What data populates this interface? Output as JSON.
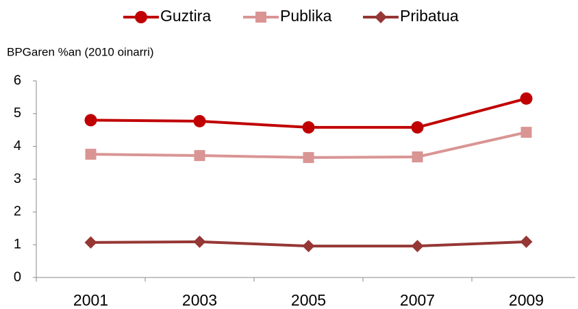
{
  "chart_data": {
    "type": "line",
    "y_axis_label": "BPGaren %an (2010 oinarri)",
    "categories": [
      "2001",
      "2003",
      "2005",
      "2007",
      "2009"
    ],
    "series": [
      {
        "name": "Guztira",
        "color": "#c00000",
        "marker": "circle",
        "values": [
          4.8,
          4.77,
          4.58,
          4.58,
          5.46
        ]
      },
      {
        "name": "Publika",
        "color": "#d99594",
        "marker": "square",
        "values": [
          3.76,
          3.72,
          3.66,
          3.68,
          4.43
        ]
      },
      {
        "name": "Pribatua",
        "color": "#953735",
        "marker": "diamond",
        "values": [
          1.07,
          1.09,
          0.96,
          0.96,
          1.09
        ]
      }
    ],
    "ylim": [
      0,
      6
    ],
    "yticks": [
      0,
      1,
      2,
      3,
      4,
      5,
      6
    ],
    "grid": false,
    "legend": "top"
  }
}
